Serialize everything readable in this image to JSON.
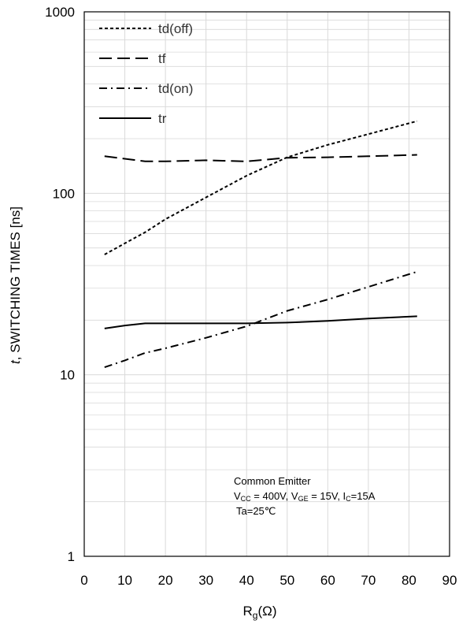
{
  "chart_data": {
    "type": "line",
    "yscale": "log",
    "ylim": [
      1,
      1000
    ],
    "xlim": [
      0,
      90
    ],
    "xticks": [
      "0",
      "10",
      "20",
      "30",
      "40",
      "50",
      "60",
      "70",
      "80",
      "90"
    ],
    "yticks": [
      "1",
      "10",
      "100",
      "1000"
    ],
    "ylabel_italic": "t",
    "ylabel_rest": ", SWITCHING TIMES [ns]",
    "xlabel_main": "R",
    "xlabel_sub": "g",
    "xlabel_unit": "(Ω)",
    "grid": true,
    "legend_position": "top-left",
    "series": [
      {
        "name": "td(off)",
        "style": "dotted-dash",
        "x": [
          5,
          10,
          15,
          20,
          30,
          40,
          50,
          60,
          70,
          82
        ],
        "y": [
          46,
          53,
          61,
          72,
          95,
          125,
          158,
          185,
          212,
          250
        ]
      },
      {
        "name": "tf",
        "style": "long-dash",
        "x": [
          5,
          10,
          15,
          20,
          30,
          40,
          50,
          60,
          70,
          82
        ],
        "y": [
          160,
          155,
          150,
          150,
          152,
          150,
          157,
          158,
          160,
          163
        ]
      },
      {
        "name": "td(on)",
        "style": "dash-dot",
        "x": [
          5,
          10,
          15,
          20,
          30,
          40,
          50,
          60,
          70,
          82
        ],
        "y": [
          11,
          12,
          13.2,
          14,
          16,
          18.5,
          22.5,
          26,
          30.5,
          37
        ]
      },
      {
        "name": "tr",
        "style": "solid",
        "x": [
          5,
          10,
          15,
          20,
          30,
          40,
          50,
          60,
          70,
          82
        ],
        "y": [
          18,
          18.7,
          19.2,
          19.2,
          19.2,
          19.2,
          19.4,
          19.8,
          20.4,
          21
        ]
      }
    ],
    "annotation": {
      "line1": "Common Emitter",
      "line2_v": "V",
      "line2_cc_sub": "CC",
      "line2_a": " = 400V, V",
      "line2_ge_sub": "GE",
      "line2_b": " = 15V, I",
      "line2_c_sub": "C",
      "line2_c": "=15A",
      "line3": "Ta=25℃"
    },
    "colors": {
      "line": "#000000",
      "grid": "#d9d9d9",
      "frame": "#000000"
    }
  }
}
